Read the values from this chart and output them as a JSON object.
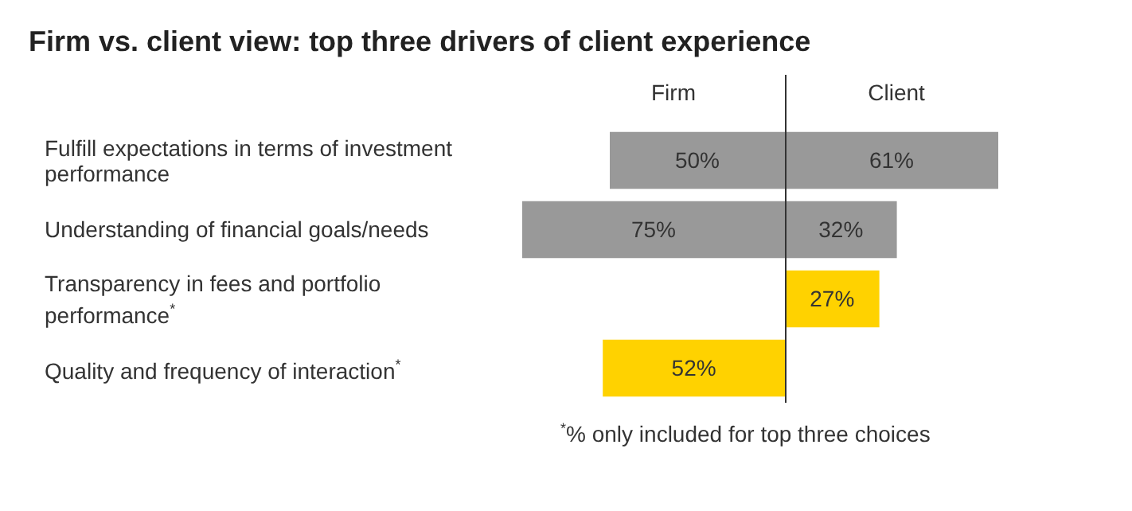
{
  "chart_data": [
    {
      "type": "bar",
      "orientation": "horizontal",
      "title": "Firm vs. client view: top three drivers of client experience",
      "categories": [
        "Fulfill expectations in terms of investment performance",
        "Understanding of financial goals/needs",
        "Transparency in fees and portfolio performance$^{*}$",
        "Quality and frequency of interaction$^{*}$"
      ],
      "series": [
        {
          "name": "Firm",
          "colors": [
            "#999999",
            "#999999",
            "#ffd200",
            "#ffd200"
          ],
          "values": [
            50,
            75,
            null,
            52
          ],
          "value_labels": [
            "50%",
            "75%",
            null,
            "52%"
          ]
        }
      ],
      "xlim": [
        75,
        0
      ],
      "tick_labels": "y",
      "grid": false,
      "legend": false
    },
    {
      "type": "bar",
      "orientation": "horizontal",
      "categories": [
        null,
        null,
        null,
        null
      ],
      "series": [
        {
          "name": "Client",
          "colors": [
            "#999999",
            "#999999",
            "#ffd200",
            "#ffd200"
          ],
          "values": [
            61,
            32,
            27,
            null
          ],
          "value_labels": [
            "61%",
            "32%",
            "27%",
            null
          ]
        }
      ],
      "xlim": [
        0,
        61
      ],
      "tick_labels": false,
      "annotations": [
        "$^{*}$% only included for top three choices"
      ],
      "grid": false,
      "legend": false
    }
  ]
}
